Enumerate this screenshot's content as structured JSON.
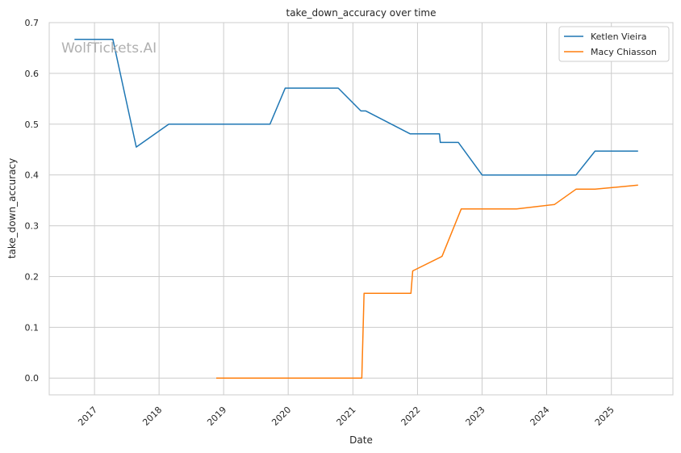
{
  "chart_data": {
    "type": "line",
    "title": "take_down_accuracy over time",
    "xlabel": "Date",
    "ylabel": "take_down_accuracy",
    "watermark": "WolfTickets.AI",
    "ylim": [
      -0.033,
      0.7
    ],
    "xlim": [
      "2016-04-20",
      "2025-12-15"
    ],
    "y_ticks": [
      0.0,
      0.1,
      0.2,
      0.3,
      0.4,
      0.5,
      0.6,
      0.7
    ],
    "y_tick_labels": [
      "0.0",
      "0.1",
      "0.2",
      "0.3",
      "0.4",
      "0.5",
      "0.6",
      "0.7"
    ],
    "x_ticks": [
      "2017-01-01",
      "2018-01-01",
      "2019-01-01",
      "2020-01-01",
      "2021-01-01",
      "2022-01-01",
      "2023-01-01",
      "2024-01-01",
      "2025-01-01"
    ],
    "x_tick_labels": [
      "2017",
      "2018",
      "2019",
      "2020",
      "2021",
      "2022",
      "2023",
      "2024",
      "2025"
    ],
    "grid": true,
    "legend_position": "top-right",
    "series": [
      {
        "name": "Ketlen Vieira",
        "color": "#1f77b4",
        "points": [
          [
            "2016-09-10",
            0.667
          ],
          [
            "2017-04-15",
            0.667
          ],
          [
            "2017-08-25",
            0.455
          ],
          [
            "2018-02-25",
            0.5
          ],
          [
            "2019-09-20",
            0.5
          ],
          [
            "2019-12-15",
            0.571
          ],
          [
            "2020-10-10",
            0.571
          ],
          [
            "2021-02-15",
            0.526
          ],
          [
            "2021-03-15",
            0.526
          ],
          [
            "2021-11-20",
            0.481
          ],
          [
            "2022-05-05",
            0.481
          ],
          [
            "2022-05-10",
            0.464
          ],
          [
            "2022-08-20",
            0.464
          ],
          [
            "2023-01-01",
            0.4
          ],
          [
            "2024-06-15",
            0.4
          ],
          [
            "2024-10-01",
            0.447
          ],
          [
            "2025-06-01",
            0.447
          ]
        ]
      },
      {
        "name": "Macy Chiasson",
        "color": "#ff7f0e",
        "points": [
          [
            "2018-11-20",
            0.0
          ],
          [
            "2021-02-20",
            0.0
          ],
          [
            "2021-03-05",
            0.167
          ],
          [
            "2021-11-25",
            0.167
          ],
          [
            "2021-12-05",
            0.211
          ],
          [
            "2022-05-10",
            0.238
          ],
          [
            "2022-05-20",
            0.24
          ],
          [
            "2022-09-05",
            0.333
          ],
          [
            "2023-07-15",
            0.333
          ],
          [
            "2024-02-15",
            0.342
          ],
          [
            "2024-06-15",
            0.372
          ],
          [
            "2024-10-01",
            0.372
          ],
          [
            "2025-06-01",
            0.38
          ]
        ]
      }
    ]
  }
}
